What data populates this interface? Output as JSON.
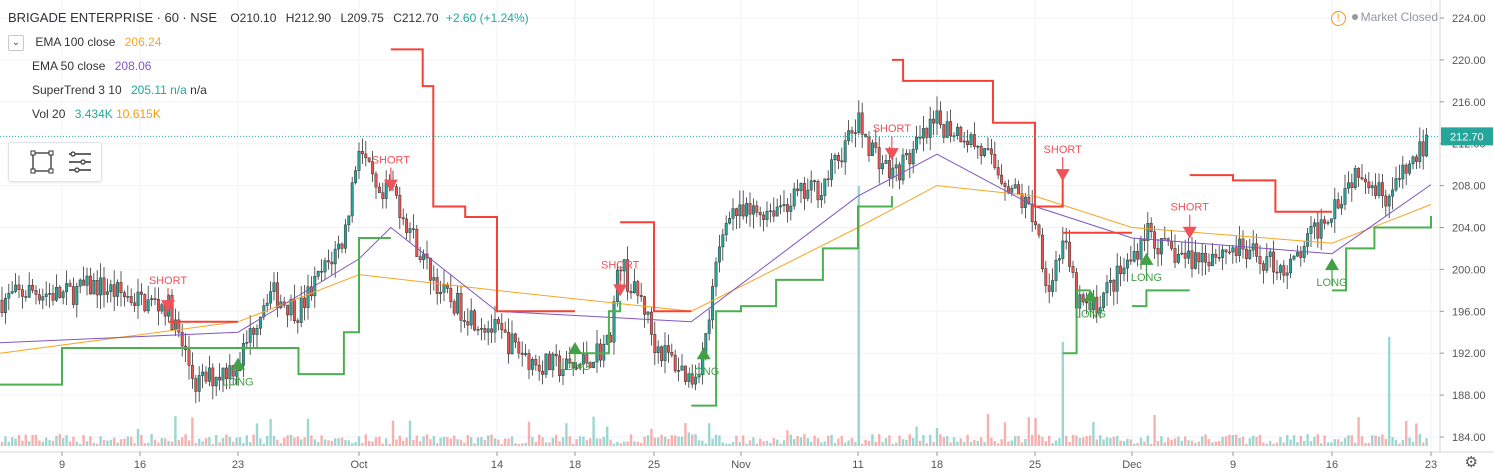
{
  "header": {
    "symbol": "BRIGADE ENTERPRISE",
    "interval": "60",
    "exchange": "NSE",
    "open": "O210.10",
    "high": "H212.90",
    "low": "L209.75",
    "close": "C212.70",
    "change": "+2.60 (+1.24%)"
  },
  "indicators": [
    {
      "label": "EMA 100 close",
      "values": [
        "206.24"
      ],
      "color": "#f6a623"
    },
    {
      "label": "EMA 50 close",
      "values": [
        "208.06"
      ],
      "color": "#7e57c2"
    },
    {
      "label": "SuperTrend 3 10",
      "values": [
        "205.11",
        "n/a",
        "n/a"
      ],
      "color": "#26a69a"
    },
    {
      "label": "Vol 20",
      "values": [
        "3.434K",
        "10.615K"
      ],
      "color": "#26a69a"
    }
  ],
  "status": {
    "text": "Market Closed"
  },
  "toolbar": {
    "icons": [
      "select-rectangle-icon",
      "indicator-list-icon"
    ]
  },
  "chart_data": {
    "type": "candlestick",
    "y_axis": {
      "min": 184,
      "max": 224,
      "ticks": [
        "224.00",
        "220.00",
        "216.00",
        "212.00",
        "208.00",
        "204.00",
        "200.00",
        "196.00",
        "192.00",
        "188.00",
        "184.00"
      ]
    },
    "last_price": "212.70",
    "x_ticks": [
      {
        "label": "9",
        "date": "2019-09-09"
      },
      {
        "label": "16",
        "date": "2019-09-16"
      },
      {
        "label": "23",
        "date": "2019-09-23"
      },
      {
        "label": "Oct",
        "date": "2019-10-01"
      },
      {
        "label": "14",
        "date": "2019-10-14"
      },
      {
        "label": "18",
        "date": "2019-10-18"
      },
      {
        "label": "25",
        "date": "2019-10-25"
      },
      {
        "label": "Nov",
        "date": "2019-11-01"
      },
      {
        "label": "11",
        "date": "2019-11-11"
      },
      {
        "label": "18",
        "date": "2019-11-18"
      },
      {
        "label": "25",
        "date": "2019-11-25"
      },
      {
        "label": "Dec",
        "date": "2019-12-02"
      },
      {
        "label": "9",
        "date": "2019-12-09"
      },
      {
        "label": "16",
        "date": "2019-12-16"
      },
      {
        "label": "23",
        "date": "2019-12-23"
      }
    ],
    "price_path": [
      [
        "2019-09-03",
        197.0
      ],
      [
        "2019-09-06",
        198.0
      ],
      [
        "2019-09-09",
        197.5
      ],
      [
        "2019-09-12",
        198.5
      ],
      [
        "2019-09-16",
        197.0
      ],
      [
        "2019-09-18",
        196.5
      ],
      [
        "2019-09-20",
        189.0
      ],
      [
        "2019-09-23",
        191.0
      ],
      [
        "2019-09-25",
        198.0
      ],
      [
        "2019-09-27",
        196.0
      ],
      [
        "2019-09-30",
        203.0
      ],
      [
        "2019-10-01",
        212.0
      ],
      [
        "2019-10-03",
        206.0
      ],
      [
        "2019-10-04",
        208.0
      ],
      [
        "2019-10-07",
        201.0
      ],
      [
        "2019-10-09",
        197.5
      ],
      [
        "2019-10-11",
        196.0
      ],
      [
        "2019-10-14",
        194.0
      ],
      [
        "2019-10-16",
        191.0
      ],
      [
        "2019-10-18",
        190.5
      ],
      [
        "2019-10-21",
        193.0
      ],
      [
        "2019-10-22",
        201.0
      ],
      [
        "2019-10-23",
        198.0
      ],
      [
        "2019-10-24",
        197.0
      ],
      [
        "2019-10-25",
        193.0
      ],
      [
        "2019-10-28",
        189.5
      ],
      [
        "2019-10-29",
        192.0
      ],
      [
        "2019-10-30",
        200.0
      ],
      [
        "2019-10-31",
        206.0
      ],
      [
        "2019-11-01",
        205.0
      ],
      [
        "2019-11-04",
        206.0
      ],
      [
        "2019-11-06",
        207.0
      ],
      [
        "2019-11-08",
        208.0
      ],
      [
        "2019-11-11",
        214.0
      ],
      [
        "2019-11-12",
        212.0
      ],
      [
        "2019-11-14",
        209.0
      ],
      [
        "2019-11-15",
        210.0
      ],
      [
        "2019-11-18",
        214.0
      ],
      [
        "2019-11-20",
        213.0
      ],
      [
        "2019-11-22",
        210.0
      ],
      [
        "2019-11-25",
        205.0
      ],
      [
        "2019-11-26",
        198.0
      ],
      [
        "2019-11-27",
        203.0
      ],
      [
        "2019-11-28",
        197.0
      ],
      [
        "2019-11-29",
        196.0
      ],
      [
        "2019-12-02",
        201.0
      ],
      [
        "2019-12-03",
        204.0
      ],
      [
        "2019-12-04",
        202.0
      ],
      [
        "2019-12-06",
        201.0
      ],
      [
        "2019-12-09",
        202.0
      ],
      [
        "2019-12-11",
        201.0
      ],
      [
        "2019-12-13",
        200.0
      ],
      [
        "2019-12-16",
        206.0
      ],
      [
        "2019-12-18",
        210.0
      ],
      [
        "2019-12-19",
        208.0
      ],
      [
        "2019-12-20",
        207.0
      ],
      [
        "2019-12-23",
        212.7
      ]
    ],
    "ema100": [
      [
        "2019-09-03",
        192.0
      ],
      [
        "2019-09-23",
        195.0
      ],
      [
        "2019-10-01",
        199.5
      ],
      [
        "2019-10-14",
        198.0
      ],
      [
        "2019-10-28",
        196.0
      ],
      [
        "2019-11-11",
        204.0
      ],
      [
        "2019-11-18",
        208.0
      ],
      [
        "2019-11-25",
        207.0
      ],
      [
        "2019-12-02",
        204.0
      ],
      [
        "2019-12-16",
        202.5
      ],
      [
        "2019-12-23",
        206.2
      ]
    ],
    "ema50": [
      [
        "2019-09-03",
        193.0
      ],
      [
        "2019-09-23",
        194.0
      ],
      [
        "2019-10-01",
        201.0
      ],
      [
        "2019-10-04",
        204.0
      ],
      [
        "2019-10-14",
        196.0
      ],
      [
        "2019-10-28",
        195.0
      ],
      [
        "2019-11-11",
        207.0
      ],
      [
        "2019-11-18",
        211.0
      ],
      [
        "2019-11-25",
        206.0
      ],
      [
        "2019-12-02",
        203.0
      ],
      [
        "2019-12-16",
        201.5
      ],
      [
        "2019-12-23",
        208.1
      ]
    ],
    "supertrend_up": [
      [
        [
          "2019-09-03",
          189.0
        ],
        [
          "2019-09-06",
          189.0
        ],
        [
          "2019-09-09",
          192.5
        ],
        [
          "2019-09-18",
          192.5
        ],
        [
          "2019-09-23",
          192.5
        ]
      ],
      [
        [
          "2019-09-23",
          192.5
        ],
        [
          "2019-09-27",
          190.0
        ],
        [
          "2019-09-30",
          194.0
        ],
        [
          "2019-10-01",
          203.0
        ],
        [
          "2019-10-04",
          203.0
        ]
      ],
      [
        [
          "2019-10-18",
          192.0
        ],
        [
          "2019-10-21",
          196.0
        ],
        [
          "2019-10-22",
          197.0
        ]
      ],
      [
        [
          "2019-10-28",
          187.0
        ],
        [
          "2019-10-30",
          196.0
        ],
        [
          "2019-11-01",
          196.5
        ],
        [
          "2019-11-04",
          199.0
        ],
        [
          "2019-11-08",
          202.0
        ],
        [
          "2019-11-11",
          206.0
        ],
        [
          "2019-11-14",
          207.0
        ]
      ],
      [
        [
          "2019-11-27",
          192.0
        ],
        [
          "2019-11-28",
          198.0
        ],
        [
          "2019-11-29",
          198.0
        ]
      ],
      [
        [
          "2019-12-02",
          196.5
        ],
        [
          "2019-12-03",
          198.0
        ],
        [
          "2019-12-06",
          198.0
        ]
      ],
      [
        [
          "2019-12-16",
          198.0
        ],
        [
          "2019-12-17",
          202.0
        ],
        [
          "2019-12-19",
          204.0
        ],
        [
          "2019-12-23",
          205.1
        ]
      ]
    ],
    "supertrend_down": [
      [
        [
          "2019-09-18",
          195.0
        ],
        [
          "2019-09-23",
          195.0
        ]
      ],
      [
        [
          "2019-10-04",
          221.0
        ],
        [
          "2019-10-07",
          217.5
        ],
        [
          "2019-10-08",
          206.0
        ],
        [
          "2019-10-11",
          205.0
        ],
        [
          "2019-10-14",
          196.0
        ],
        [
          "2019-10-18",
          196.0
        ]
      ],
      [
        [
          "2019-10-22",
          204.5
        ],
        [
          "2019-10-24",
          204.5
        ],
        [
          "2019-10-25",
          196.0
        ],
        [
          "2019-10-28",
          196.0
        ]
      ],
      [
        [
          "2019-11-14",
          220.0
        ],
        [
          "2019-11-15",
          218.0
        ],
        [
          "2019-11-20",
          218.0
        ],
        [
          "2019-11-22",
          214.0
        ],
        [
          "2019-11-25",
          206.0
        ],
        [
          "2019-11-27",
          209.0
        ]
      ],
      [
        [
          "2019-11-27",
          203.5
        ],
        [
          "2019-11-29",
          203.5
        ],
        [
          "2019-12-02",
          203.5
        ]
      ],
      [
        [
          "2019-12-06",
          209.0
        ],
        [
          "2019-12-09",
          208.5
        ],
        [
          "2019-12-11",
          208.5
        ],
        [
          "2019-12-12",
          205.5
        ],
        [
          "2019-12-16",
          205.5
        ]
      ]
    ],
    "signals": [
      {
        "type": "SHORT",
        "date": "2019-09-18",
        "price": 196.5
      },
      {
        "type": "LONG",
        "date": "2019-09-23",
        "price": 191.0
      },
      {
        "type": "SHORT",
        "date": "2019-10-04",
        "price": 208.0
      },
      {
        "type": "LONG",
        "date": "2019-10-18",
        "price": 192.5
      },
      {
        "type": "SHORT",
        "date": "2019-10-22",
        "price": 198.0
      },
      {
        "type": "LONG",
        "date": "2019-10-29",
        "price": 192.0
      },
      {
        "type": "SHORT",
        "date": "2019-11-14",
        "price": 211.0
      },
      {
        "type": "SHORT",
        "date": "2019-11-27",
        "price": 209.0
      },
      {
        "type": "LONG",
        "date": "2019-11-29",
        "price": 197.5
      },
      {
        "type": "LONG",
        "date": "2019-12-03",
        "price": 201.0
      },
      {
        "type": "SHORT",
        "date": "2019-12-06",
        "price": 203.5
      },
      {
        "type": "LONG",
        "date": "2019-12-16",
        "price": 200.5
      }
    ],
    "volume_spikes": [
      {
        "date": "2019-11-11",
        "value": 10.0
      },
      {
        "date": "2019-11-27",
        "value": 4.0
      },
      {
        "date": "2019-12-20",
        "value": 4.2
      }
    ],
    "colors": {
      "up": "#26a69a",
      "down": "#ef5350",
      "ema100": "#f6a623",
      "ema50": "#7e57c2",
      "st_up": "#4caf50",
      "st_down": "#f44336"
    }
  }
}
